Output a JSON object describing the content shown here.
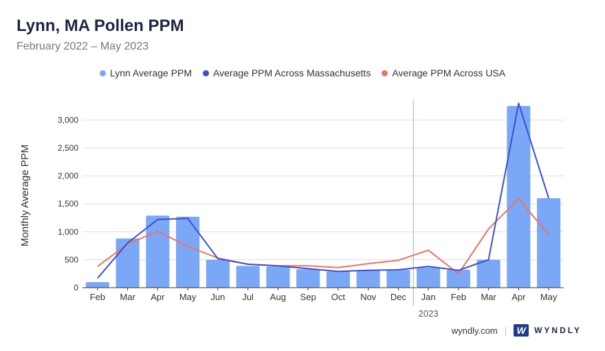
{
  "header": {
    "title": "Lynn, MA Pollen PPM",
    "subtitle": "February 2022 – May 2023"
  },
  "footer": {
    "site": "wyndly.com",
    "separator": "|",
    "brand_mark": "W",
    "brand_name": "WYNDLY"
  },
  "colors": {
    "bar": "#7ba7f7",
    "ma_line": "#3c4fcf",
    "usa_line": "#f07262",
    "grid": "#dddddd"
  },
  "chart_data": {
    "type": "bar",
    "title": "Lynn, MA Pollen PPM",
    "subtitle": "February 2022 – May 2023",
    "ylabel": "Monthly Average PPM",
    "xlabel": "",
    "ylim": [
      0,
      3300
    ],
    "yticks": [
      0,
      500,
      1000,
      1500,
      2000,
      2500,
      3000
    ],
    "ytick_labels": [
      "0",
      "500",
      "1,000",
      "1,500",
      "2,000",
      "2,500",
      "3,000"
    ],
    "grid": true,
    "legend_position": "top-center",
    "categories": [
      "Feb",
      "Mar",
      "Apr",
      "May",
      "Jun",
      "Jul",
      "Aug",
      "Sep",
      "Oct",
      "Nov",
      "Dec",
      "Jan",
      "Feb",
      "Mar",
      "Apr",
      "May"
    ],
    "year_divider": {
      "before_index": 11,
      "label": "2023"
    },
    "series": [
      {
        "name": "Lynn Average PPM",
        "kind": "bar",
        "values": [
          100,
          880,
          1290,
          1270,
          500,
          390,
          380,
          330,
          290,
          310,
          320,
          360,
          320,
          500,
          3250,
          1600
        ]
      },
      {
        "name": "Average PPM Across Massachusetts",
        "kind": "line",
        "values": [
          170,
          800,
          1220,
          1240,
          520,
          420,
          390,
          340,
          290,
          310,
          320,
          380,
          310,
          500,
          3300,
          1600
        ]
      },
      {
        "name": "Average PPM Across USA",
        "kind": "line",
        "values": [
          380,
          780,
          1010,
          740,
          530,
          420,
          390,
          390,
          360,
          430,
          490,
          670,
          250,
          1050,
          1590,
          950
        ]
      }
    ]
  }
}
